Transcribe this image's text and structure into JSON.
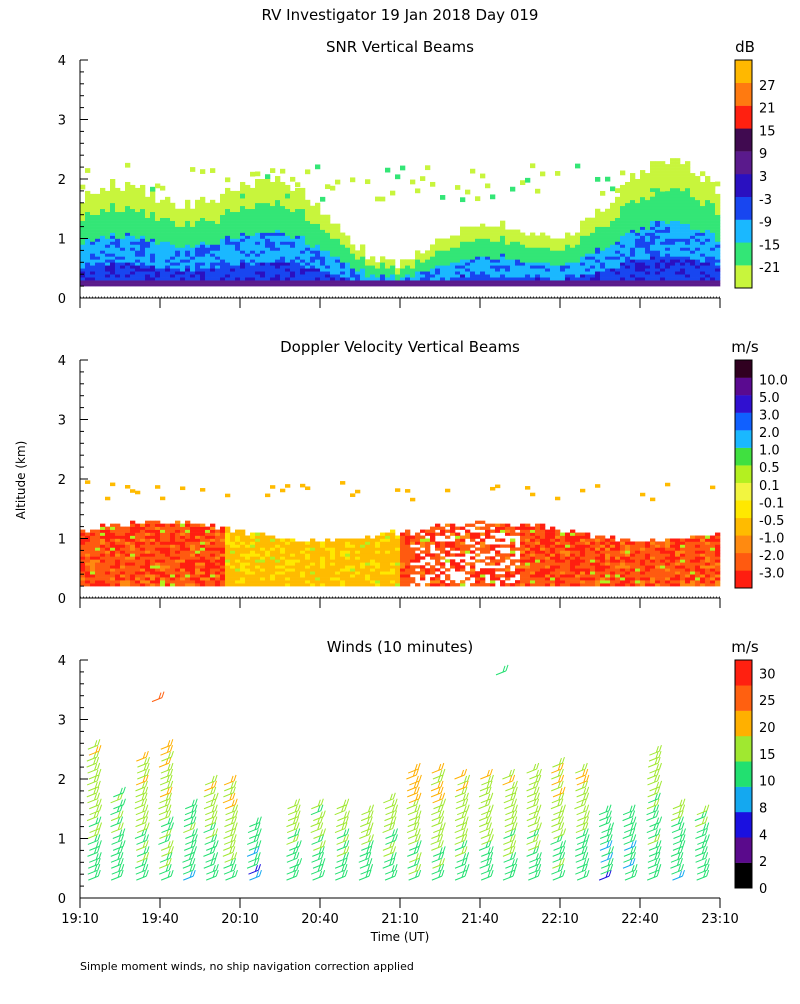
{
  "figure": {
    "title": "RV Investigator  19 Jan 2018 Day 019",
    "footnote": "Simple moment winds, no ship navigation correction applied",
    "ylabel": "Altitude (km)",
    "xlabel": "Time (UT)"
  },
  "chart_data": [
    {
      "type": "heatmap",
      "title": "SNR Vertical Beams",
      "ylim": [
        0,
        4
      ],
      "yticks": [
        "0",
        "1",
        "2",
        "3",
        "4"
      ],
      "colorbar": {
        "unit": "dB",
        "levels": [
          "-21",
          "-15",
          "-9",
          "-3",
          "3",
          "9",
          "15",
          "21",
          "27"
        ],
        "colors": [
          "#c8f53c",
          "#33e676",
          "#1ab8ff",
          "#1846f0",
          "#2a10c0",
          "#5a1a8c",
          "#400a50",
          "#ff2010",
          "#ff7a10",
          "#ffb800"
        ]
      },
      "xlim": [
        0,
        4
      ]
    },
    {
      "type": "heatmap",
      "title": "Doppler Velocity Vertical Beams",
      "ylim": [
        0,
        4
      ],
      "yticks": [
        "0",
        "1",
        "2",
        "3",
        "4"
      ],
      "colorbar": {
        "unit": "m/s",
        "levels": [
          "-3.0",
          "-2.0",
          "-1.0",
          "-0.5",
          "-0.1",
          "0.1",
          "0.5",
          "1.0",
          "2.0",
          "3.0",
          "5.0",
          "10.0"
        ],
        "colors": [
          "#ff1e10",
          "#ff5a10",
          "#ff8a10",
          "#ffbb00",
          "#ffe800",
          "#f2f540",
          "#b4f020",
          "#40e040",
          "#1ab8ff",
          "#1060ff",
          "#3010d0",
          "#5a0a90",
          "#300020"
        ]
      },
      "xlim": [
        0,
        4
      ]
    },
    {
      "type": "scatter",
      "title": "Winds (10 minutes)",
      "ylim": [
        0,
        4
      ],
      "yticks": [
        "0",
        "1",
        "2",
        "3",
        "4"
      ],
      "xlim": [
        0,
        4
      ],
      "xticks": [
        "19:10",
        "19:40",
        "20:10",
        "20:40",
        "21:10",
        "21:40",
        "22:10",
        "22:40",
        "23:10"
      ],
      "colorbar": {
        "unit": "m/s",
        "levels": [
          "0",
          "2",
          "4",
          "8",
          "10",
          "15",
          "20",
          "25",
          "30"
        ],
        "colors": [
          "#000000",
          "#5a0a8c",
          "#1a10e0",
          "#14a8f0",
          "#22e070",
          "#a0e830",
          "#ffb000",
          "#ff6010",
          "#ff2010"
        ]
      },
      "profiles": [
        {
          "t": 0.05,
          "top": 2.6,
          "speed": 20
        },
        {
          "t": 0.2,
          "top": 1.8,
          "speed": 17
        },
        {
          "t": 0.35,
          "top": 2.4,
          "speed": 21
        },
        {
          "t": 0.5,
          "top": 2.6,
          "speed": 22
        },
        {
          "t": 0.65,
          "top": 1.6,
          "speed": 16
        },
        {
          "t": 0.78,
          "top": 2.0,
          "speed": 20
        },
        {
          "t": 0.9,
          "top": 2.0,
          "speed": 21
        },
        {
          "t": 1.05,
          "top": 1.2,
          "speed": 13
        },
        {
          "t": 1.3,
          "top": 1.6,
          "speed": 18
        },
        {
          "t": 1.45,
          "top": 1.6,
          "speed": 18
        },
        {
          "t": 1.6,
          "top": 1.6,
          "speed": 19
        },
        {
          "t": 1.75,
          "top": 1.5,
          "speed": 19
        },
        {
          "t": 1.9,
          "top": 1.7,
          "speed": 20
        },
        {
          "t": 2.05,
          "top": 2.2,
          "speed": 22
        },
        {
          "t": 2.2,
          "top": 2.2,
          "speed": 22
        },
        {
          "t": 2.35,
          "top": 2.1,
          "speed": 21
        },
        {
          "t": 2.5,
          "top": 2.1,
          "speed": 20
        },
        {
          "t": 2.65,
          "top": 2.1,
          "speed": 20
        },
        {
          "t": 2.8,
          "top": 2.2,
          "speed": 20
        },
        {
          "t": 2.95,
          "top": 2.3,
          "speed": 22
        },
        {
          "t": 3.1,
          "top": 2.2,
          "speed": 20
        },
        {
          "t": 3.25,
          "top": 1.5,
          "speed": 14
        },
        {
          "t": 3.4,
          "top": 1.5,
          "speed": 14
        },
        {
          "t": 3.55,
          "top": 2.5,
          "speed": 19
        },
        {
          "t": 3.7,
          "top": 1.6,
          "speed": 16
        },
        {
          "t": 3.85,
          "top": 1.5,
          "speed": 15
        }
      ],
      "isolated": [
        {
          "t": 0.45,
          "y": 3.3,
          "speed": 28
        },
        {
          "t": 2.6,
          "y": 3.75,
          "speed": 14
        }
      ]
    }
  ]
}
